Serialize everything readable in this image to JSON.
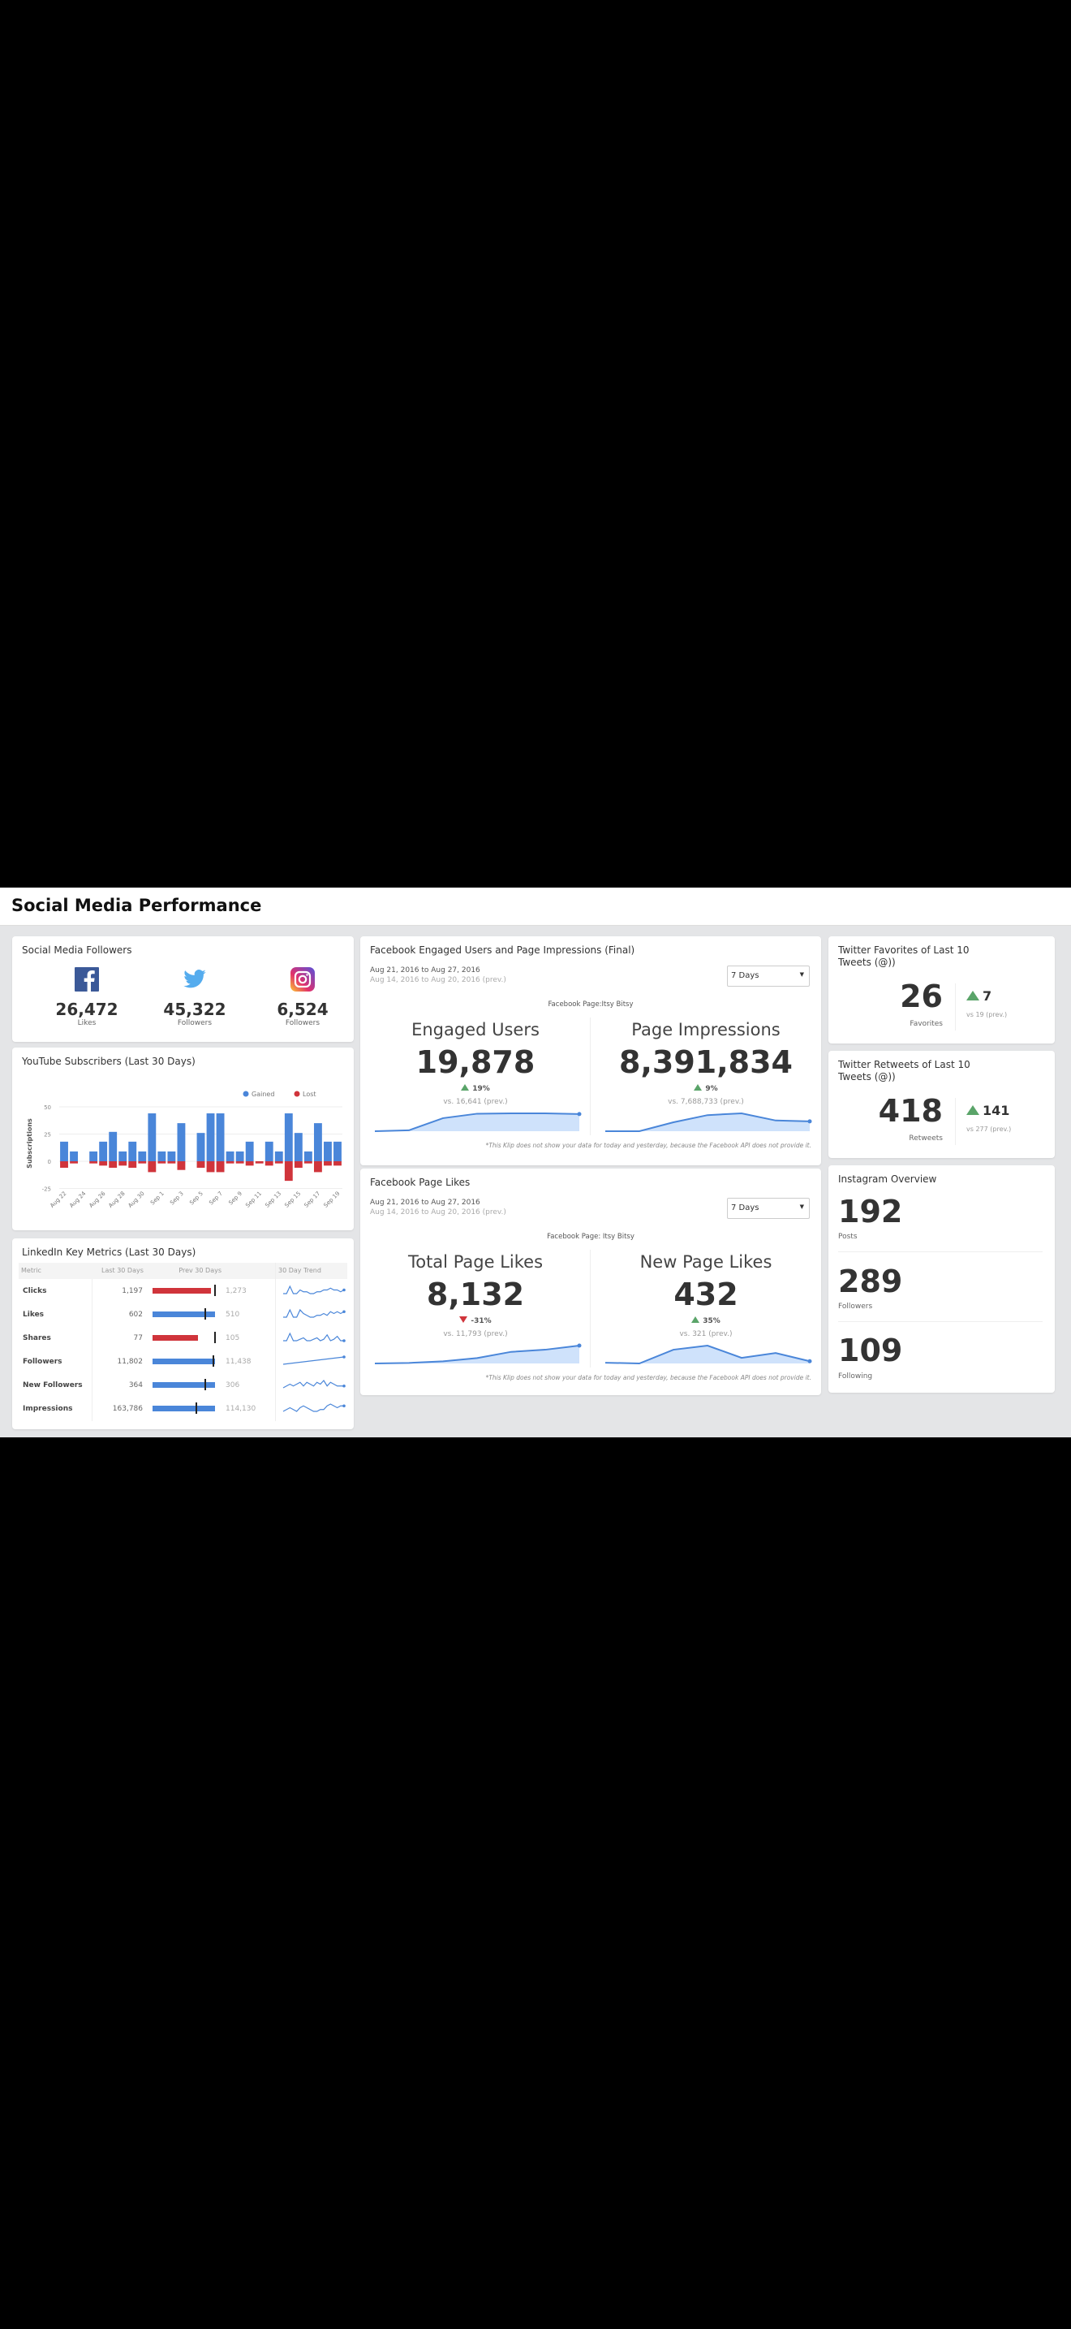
{
  "header": {
    "title": "Social Media Performance"
  },
  "colors": {
    "blue": "#4a86d9",
    "red": "#d0343b",
    "green": "#5aa469",
    "fb": "#3b5998",
    "tw": "#55acee"
  },
  "followers": {
    "title": "Social Media Followers",
    "items": [
      {
        "icon": "facebook-icon",
        "value": "26,472",
        "label": "Likes"
      },
      {
        "icon": "twitter-icon",
        "value": "45,322",
        "label": "Followers"
      },
      {
        "icon": "instagram-icon",
        "value": "6,524",
        "label": "Followers"
      }
    ]
  },
  "youtube": {
    "title": "YouTube Subscribers (Last 30 Days)",
    "chart_data": {
      "type": "bar",
      "ylabel": "Subscriptions",
      "ylim": [
        -25,
        50
      ],
      "yticks": [
        "50",
        "25",
        "0",
        "-25"
      ],
      "ytick_values": [
        50,
        25,
        0,
        -25
      ],
      "legend": [
        {
          "name": "Gained",
          "color": "#4a86d9"
        },
        {
          "name": "Lost",
          "color": "#d0343b"
        }
      ],
      "legend_position": "top-right",
      "categories": [
        "Aug 22",
        "Aug 23",
        "Aug 24",
        "Aug 25",
        "Aug 26",
        "Aug 27",
        "Aug 28",
        "Aug 29",
        "Aug 30",
        "Aug 31",
        "Sep 1",
        "Sep 2",
        "Sep 3",
        "Sep 4",
        "Sep 5",
        "Sep 6",
        "Sep 7",
        "Sep 8",
        "Sep 9",
        "Sep 10",
        "Sep 11",
        "Sep 12",
        "Sep 13",
        "Sep 14",
        "Sep 15",
        "Sep 16",
        "Sep 17",
        "Sep 18",
        "Sep 19"
      ],
      "xtick_labels": [
        "Aug 22",
        "Aug 24",
        "Aug 26",
        "Aug 28",
        "Aug 30",
        "Sep 1",
        "Sep 3",
        "Sep 5",
        "Sep 7",
        "Sep 9",
        "Sep 11",
        "Sep 13",
        "Sep 15",
        "Sep 17",
        "Sep 19"
      ],
      "series": [
        {
          "name": "Gained",
          "values": [
            18,
            9,
            0,
            9,
            18,
            27,
            9,
            18,
            9,
            44,
            9,
            9,
            35,
            0,
            26,
            44,
            44,
            9,
            9,
            18,
            0,
            18,
            9,
            44,
            26,
            9,
            35,
            18,
            18
          ]
        },
        {
          "name": "Lost",
          "values": [
            -6,
            -2,
            0,
            -2,
            -4,
            -6,
            -4,
            -6,
            -2,
            -10,
            -2,
            -2,
            -8,
            0,
            -6,
            -10,
            -10,
            -2,
            -2,
            -4,
            -2,
            -4,
            -2,
            -18,
            -6,
            -2,
            -10,
            -4,
            -4
          ]
        }
      ]
    }
  },
  "linkedin": {
    "title": "LinkedIn Key Metrics (Last 30 Days)",
    "columns": [
      "Metric",
      "Last 30 Days",
      "Prev 30 Days",
      "30 Day Trend"
    ],
    "rows": [
      {
        "metric": "Clicks",
        "last": "1,197",
        "last_n": 1197,
        "prev": "1,273",
        "prev_n": 1273,
        "trend": [
          2,
          2,
          6,
          2,
          2,
          4,
          3,
          3,
          2,
          2,
          3,
          3,
          4,
          4,
          5,
          4,
          4,
          3,
          4
        ]
      },
      {
        "metric": "Likes",
        "last": "602",
        "last_n": 602,
        "prev": "510",
        "prev_n": 510,
        "trend": [
          2,
          2,
          6,
          2,
          2,
          6,
          4,
          3,
          2,
          2,
          3,
          3,
          4,
          3,
          5,
          4,
          5,
          4,
          5
        ]
      },
      {
        "metric": "Shares",
        "last": "77",
        "last_n": 77,
        "prev": "105",
        "prev_n": 105,
        "trend": [
          2,
          2,
          7,
          2,
          2,
          3,
          4,
          2,
          2,
          3,
          4,
          2,
          3,
          6,
          2,
          3,
          5,
          2,
          2
        ]
      },
      {
        "metric": "Followers",
        "last": "11,802",
        "last_n": 11802,
        "prev": "11,438",
        "prev_n": 11438,
        "trend": [
          1,
          1.3,
          1.6,
          1.9,
          2.2,
          2.5,
          2.8,
          3.1,
          3.4,
          3.7,
          4,
          4.3,
          4.6,
          4.9,
          5.2,
          5.5,
          5.8,
          6.1,
          6.4
        ]
      },
      {
        "metric": "New Followers",
        "last": "364",
        "last_n": 364,
        "prev": "306",
        "prev_n": 306,
        "trend": [
          2,
          3,
          4,
          3,
          4,
          5,
          3,
          5,
          4,
          3,
          5,
          4,
          6,
          3,
          5,
          4,
          3,
          3,
          3
        ]
      },
      {
        "metric": "Impressions",
        "last": "163,786",
        "last_n": 163786,
        "prev": "114,130",
        "prev_n": 114130,
        "trend": [
          2,
          3,
          4,
          3,
          2,
          4,
          5,
          4,
          3,
          2,
          2,
          3,
          3,
          5,
          6,
          5,
          4,
          5,
          5
        ]
      }
    ]
  },
  "fb_engaged": {
    "title": "Facebook Engaged Users and Page Impressions (Final)",
    "date": "Aug 21, 2016 to Aug 27, 2016",
    "prev_date": "Aug 14, 2016 to Aug 20, 2016 (prev.)",
    "range": "7 Days",
    "page": "Facebook Page:Itsy Bitsy",
    "footnote": "*This Klip does not show your data for today and yesterday, because the Facebook API does not provide it.",
    "metrics": [
      {
        "label": "Engaged Users",
        "value": "19,878",
        "change": "19%",
        "dir": "up",
        "vs": "vs. 16,641 (prev.)",
        "trend": [
          0,
          0.05,
          0.73,
          0.98,
          1,
          1,
          0.96
        ]
      },
      {
        "label": "Page Impressions",
        "value": "8,391,834",
        "change": "9%",
        "dir": "up",
        "vs": "vs. 7,688,733 (prev.)",
        "trend": [
          0,
          0,
          0.5,
          0.9,
          1,
          0.6,
          0.55
        ]
      }
    ]
  },
  "fb_likes": {
    "title": "Facebook Page Likes",
    "date": "Aug 21, 2016 to Aug 27, 2016",
    "prev_date": "Aug 14, 2016 to Aug 20, 2016 (prev.)",
    "range": "7 Days",
    "page": "Facebook Page: Itsy Bitsy",
    "footnote": "*This Klip does not show your data for today and yesterday, because the Facebook API does not provide it.",
    "metrics": [
      {
        "label": "Total Page Likes",
        "value": "8,132",
        "change": "-31%",
        "dir": "down",
        "vs": "vs. 11,793 (prev.)",
        "trend": [
          0,
          0.03,
          0.12,
          0.3,
          0.65,
          0.77,
          1
        ]
      },
      {
        "label": "New Page Likes",
        "value": "432",
        "change": "35%",
        "dir": "up",
        "vs": "vs. 321 (prev.)",
        "trend": [
          0.04,
          0,
          0.74,
          0.96,
          0.3,
          0.56,
          0.12
        ]
      }
    ]
  },
  "tw_fav": {
    "title": "Twitter Favorites of Last 10 Tweets (@))",
    "value": "26",
    "label": "Favorites",
    "change": "7",
    "vs": "vs 19 (prev.)"
  },
  "tw_rt": {
    "title": "Twitter Retweets of Last 10 Tweets (@))",
    "value": "418",
    "label": "Retweets",
    "change": "141",
    "vs": "vs 277 (prev.)"
  },
  "instagram": {
    "title": "Instagram Overview",
    "items": [
      {
        "value": "192",
        "label": "Posts"
      },
      {
        "value": "289",
        "label": "Followers"
      },
      {
        "value": "109",
        "label": "Following"
      }
    ]
  }
}
